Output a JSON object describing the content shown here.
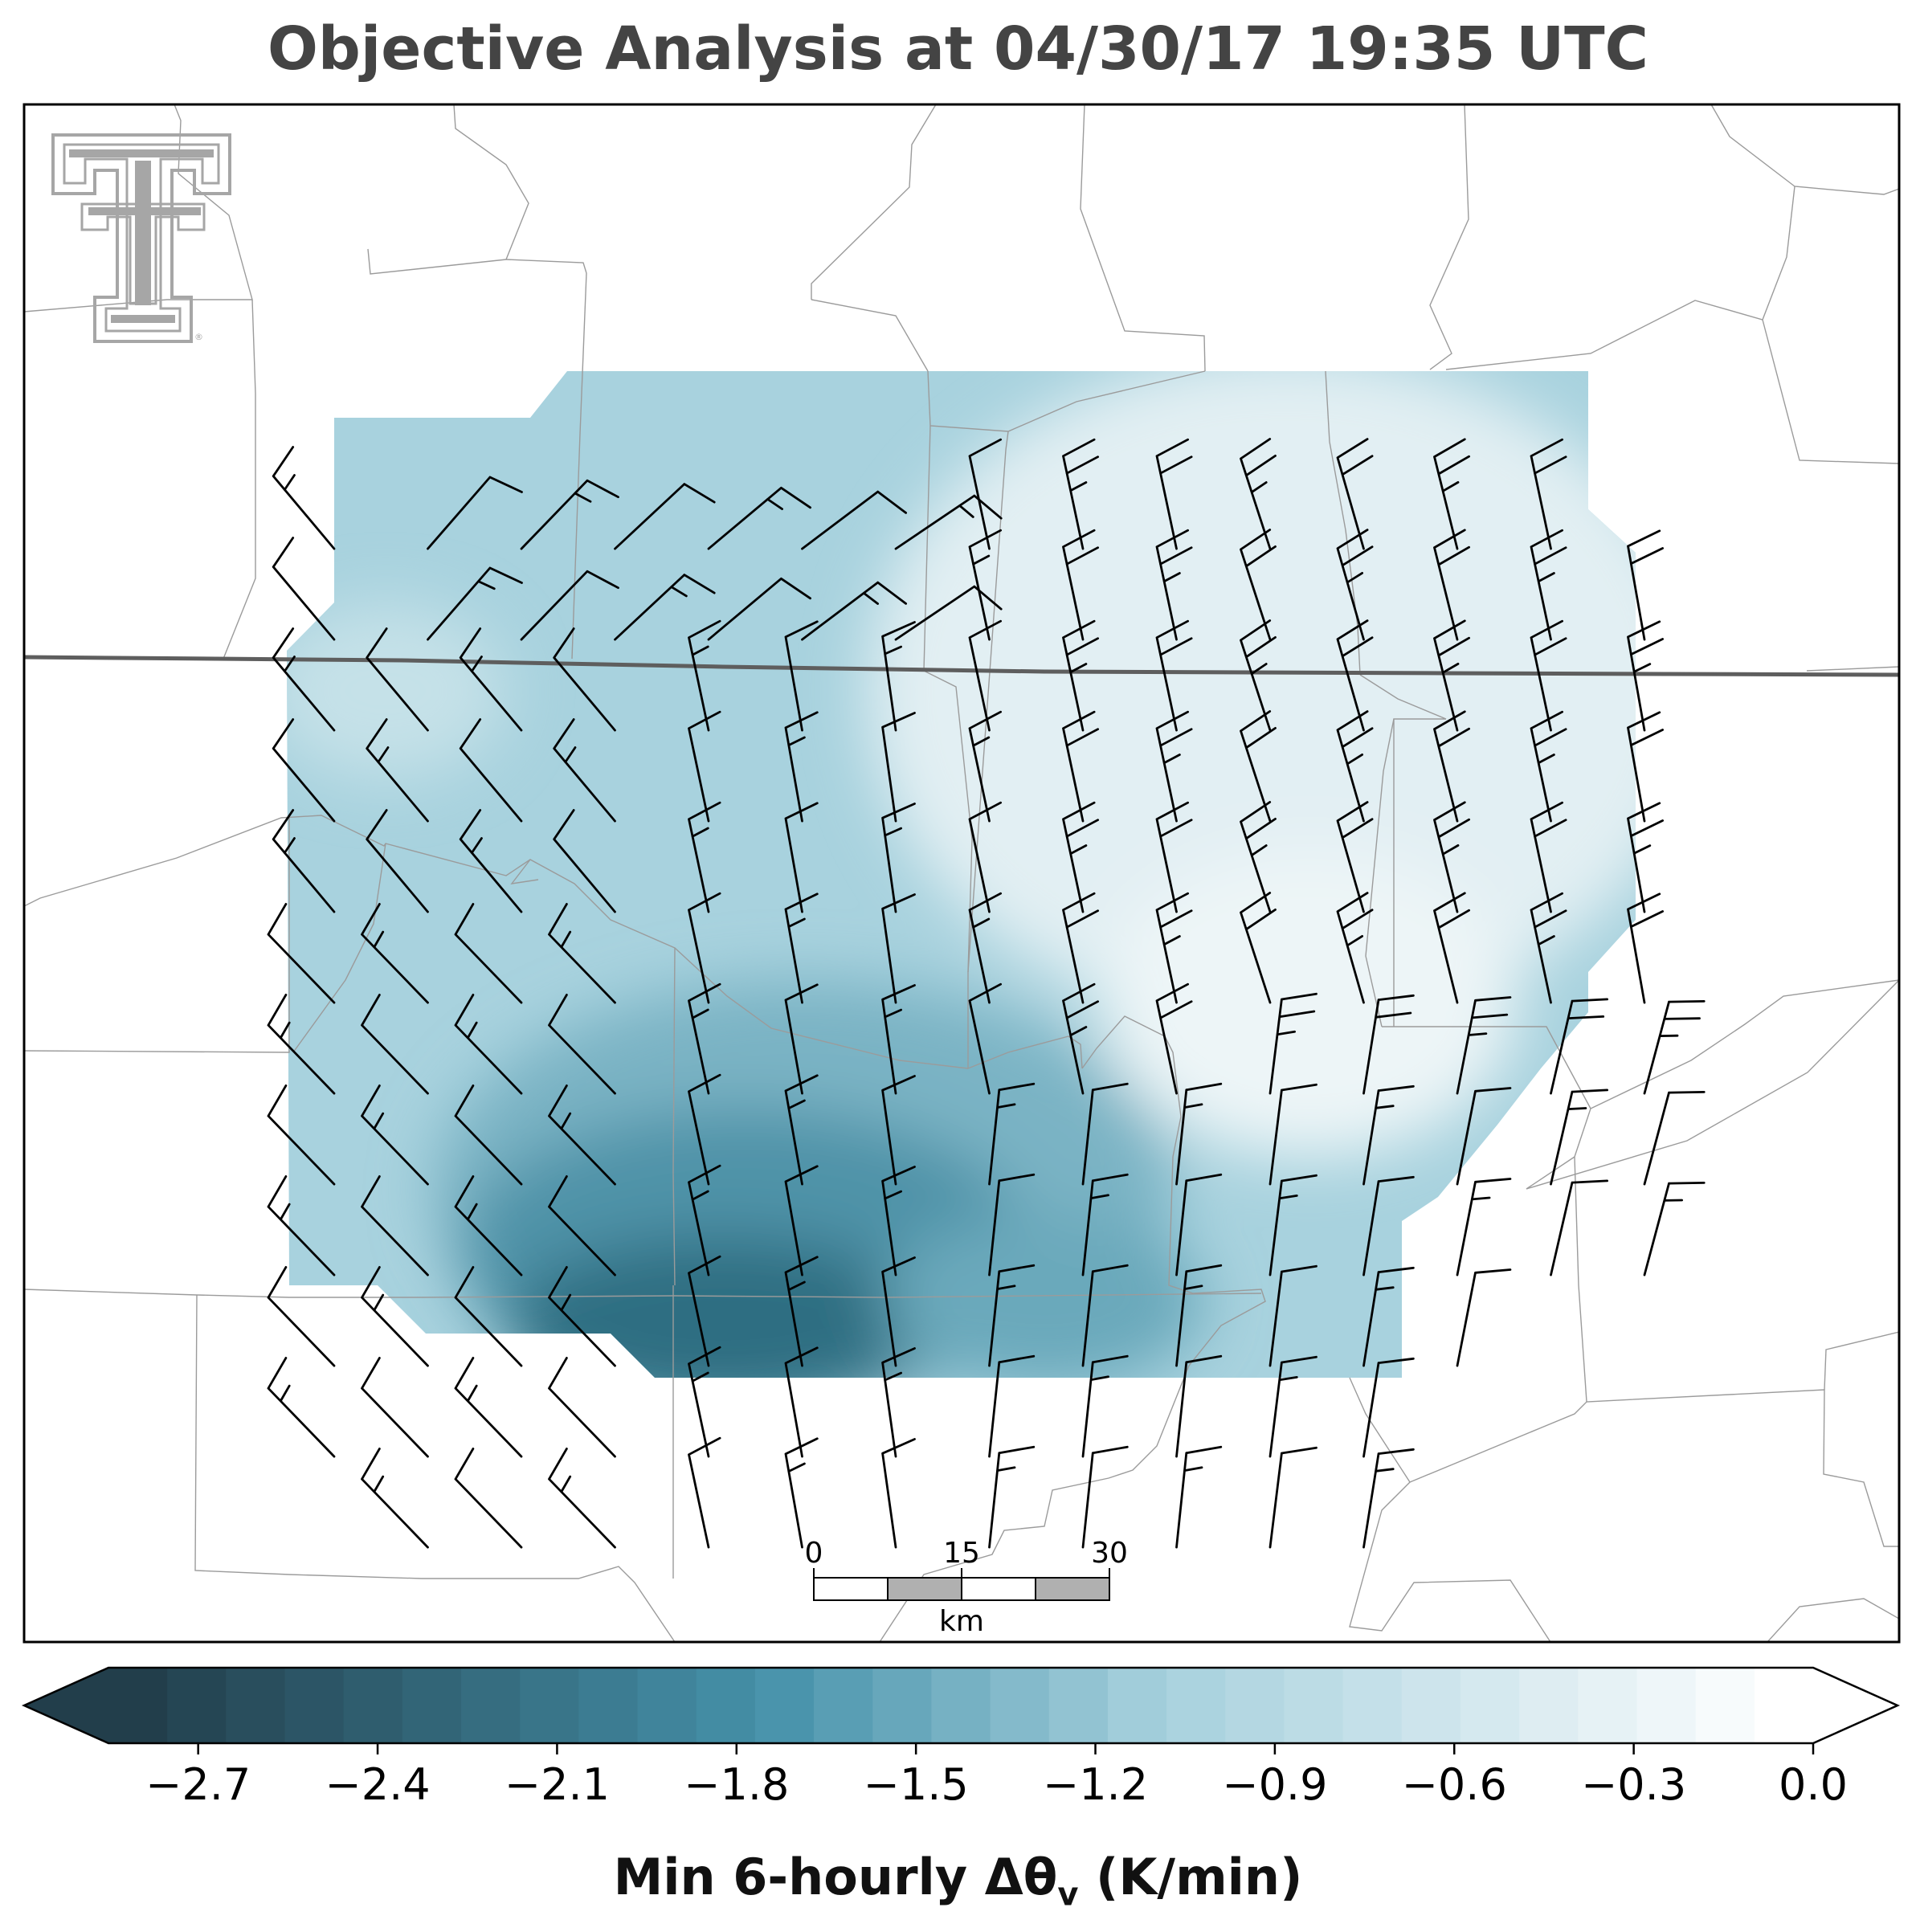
{
  "title": "Objective Analysis at 04/30/17 19:35 UTC",
  "logo": {
    "icon": "texas-tech-double-t-logo",
    "mark": "®",
    "color": "#a6a6a6"
  },
  "scale_bar": {
    "labels": [
      "0",
      "15",
      "30"
    ],
    "unit": "km"
  },
  "colorbar": {
    "label_main": "Min 6-hourly Δθ",
    "label_sub": "v",
    "label_units": " (K/min)",
    "min": -2.85,
    "max": 0.0,
    "step": 0.1,
    "extend": "both",
    "ticks": [
      "−2.7",
      "−2.4",
      "−2.1",
      "−1.8",
      "−1.5",
      "−1.2",
      "−0.9",
      "−0.6",
      "−0.3",
      "0.0"
    ],
    "tick_values": [
      -2.7,
      -2.4,
      -2.1,
      -1.8,
      -1.5,
      -1.2,
      -0.9,
      -0.6,
      -0.3,
      0.0
    ],
    "low_color": "#223e4b",
    "mid_color": "#4591a9",
    "light_color": "#a6d0dd",
    "high_color": "#ffffff"
  },
  "field": {
    "variable": "Min 6-hourly Δθv",
    "background_value": -0.8,
    "minimum_value": -2.8,
    "minimum_location": "south-central",
    "secondary_maximum": -0.2
  },
  "wind_barbs": {
    "color": "#000000",
    "rows": 12,
    "direction": "north to north-northwest over west, south-southwest to southeast over east"
  }
}
